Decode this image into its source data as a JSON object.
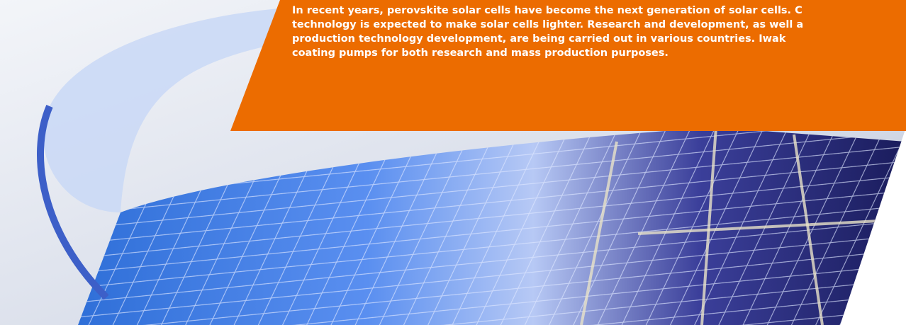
{
  "banner": {
    "lines": [
      "In recent years, perovskite solar cells have become the next generation of solar cells. C",
      "technology is expected to make solar cells lighter. Research and development, as well a",
      "production technology development, are being carried out in various countries. Iwak",
      "coating pumps for both research and mass production purposes."
    ]
  }
}
